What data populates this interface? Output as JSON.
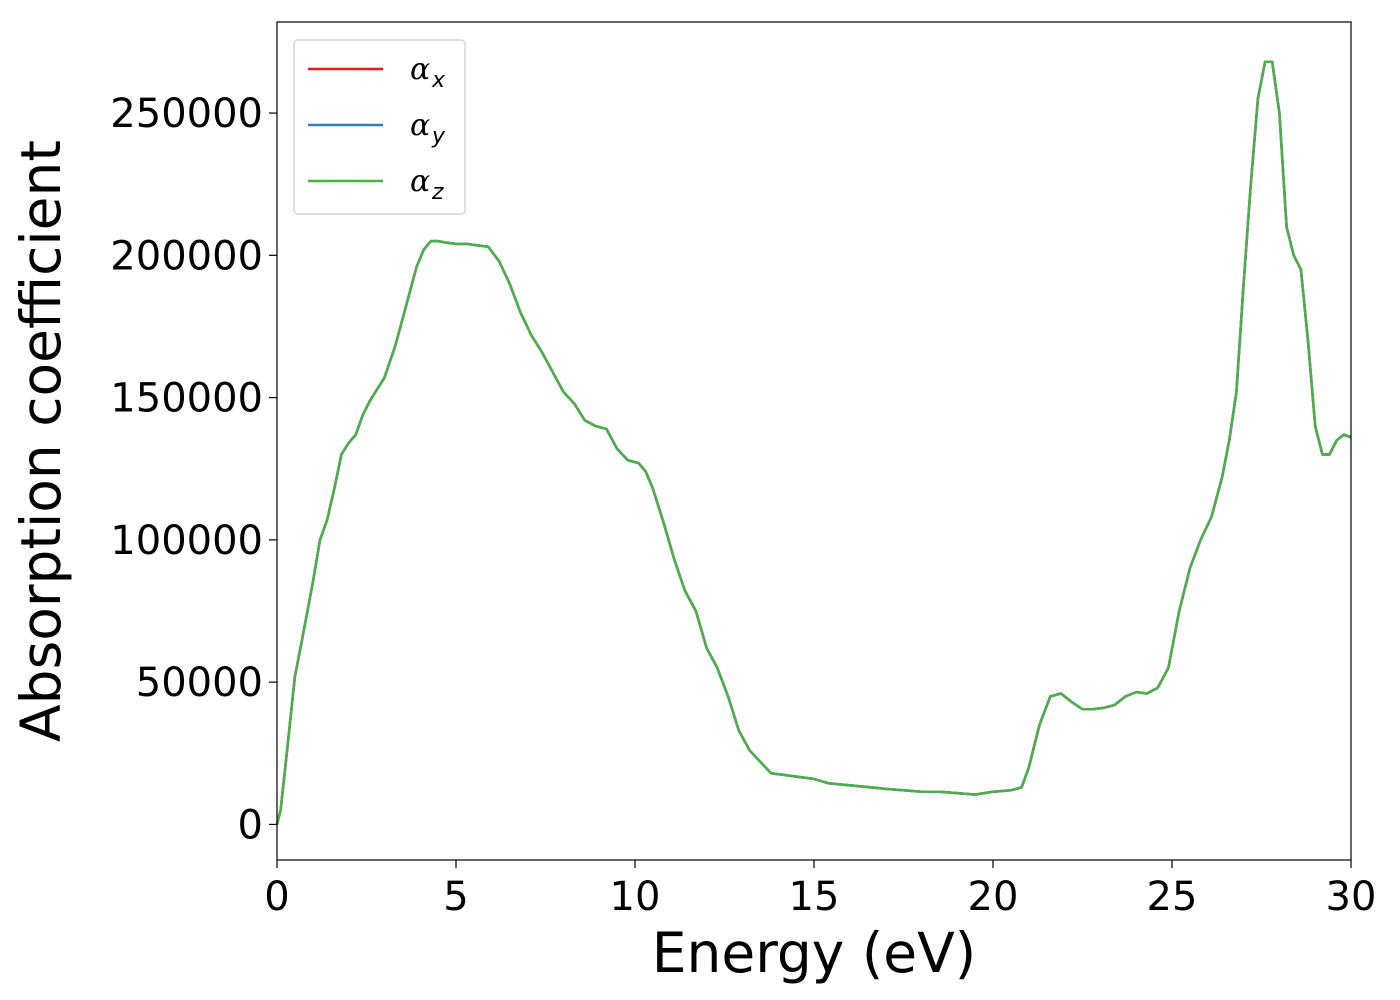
{
  "chart_data": {
    "type": "line",
    "title": "",
    "xlabel": "Energy (eV)",
    "ylabel": "Absorption coefficient",
    "xlim": [
      0,
      30
    ],
    "ylim": [
      -12500,
      282000
    ],
    "x_ticks": [
      "0",
      "5",
      "10",
      "15",
      "20",
      "25",
      "30"
    ],
    "y_ticks": [
      "0",
      "50000",
      "100000",
      "150000",
      "200000",
      "250000"
    ],
    "x_tick_values": [
      0,
      5,
      10,
      15,
      20,
      25,
      30
    ],
    "y_tick_values": [
      0,
      50000,
      100000,
      150000,
      200000,
      250000
    ],
    "grid": false,
    "legend_position": "top-left",
    "series": [
      {
        "name": "αx",
        "symbol": "α",
        "subscript": "x",
        "color": "#e41a1c"
      },
      {
        "name": "αy",
        "symbol": "α",
        "subscript": "y",
        "color": "#377eb8"
      },
      {
        "name": "αz",
        "symbol": "α",
        "subscript": "z",
        "color": "#4daf4a"
      }
    ],
    "x": [
      0,
      0.1,
      0.3,
      0.5,
      0.7,
      1.0,
      1.2,
      1.4,
      1.6,
      1.8,
      2.0,
      2.2,
      2.4,
      2.6,
      2.8,
      3.0,
      3.3,
      3.6,
      3.9,
      4.1,
      4.3,
      4.5,
      4.7,
      5.0,
      5.3,
      5.6,
      5.9,
      6.2,
      6.5,
      6.8,
      7.1,
      7.4,
      7.7,
      8.0,
      8.3,
      8.6,
      8.9,
      9.2,
      9.5,
      9.8,
      10.1,
      10.3,
      10.5,
      10.8,
      11.1,
      11.4,
      11.7,
      12.0,
      12.3,
      12.6,
      12.9,
      13.2,
      13.5,
      13.8,
      14.1,
      14.4,
      14.7,
      15.0,
      15.4,
      15.8,
      16.2,
      16.6,
      17.0,
      17.5,
      18.0,
      18.5,
      19.0,
      19.5,
      20.0,
      20.5,
      20.8,
      21.0,
      21.3,
      21.6,
      21.9,
      22.2,
      22.5,
      22.8,
      23.1,
      23.4,
      23.7,
      24.0,
      24.3,
      24.6,
      24.9,
      25.2,
      25.5,
      25.8,
      26.1,
      26.4,
      26.6,
      26.8,
      27.0,
      27.2,
      27.4,
      27.6,
      27.8,
      28.0,
      28.2,
      28.4,
      28.6,
      28.8,
      29.0,
      29.2,
      29.4,
      29.6,
      29.8,
      30.0
    ],
    "values": [
      0,
      5000,
      28000,
      52000,
      65000,
      85000,
      100000,
      107000,
      118000,
      130000,
      134000,
      137000,
      144000,
      149000,
      153000,
      157000,
      168000,
      182000,
      196000,
      202000,
      205000,
      205000,
      204500,
      204000,
      204000,
      203500,
      203000,
      198000,
      190000,
      180000,
      172000,
      166000,
      159000,
      152000,
      148000,
      142000,
      140000,
      139000,
      132000,
      128000,
      127000,
      124000,
      118000,
      106000,
      93000,
      82000,
      75000,
      62000,
      55000,
      45000,
      33000,
      26000,
      22000,
      18000,
      17500,
      17000,
      16500,
      16000,
      14500,
      14000,
      13500,
      13000,
      12500,
      12000,
      11500,
      11500,
      11000,
      10500,
      11500,
      12000,
      13000,
      20000,
      35000,
      45000,
      46000,
      43000,
      40500,
      40500,
      41000,
      42000,
      45000,
      46500,
      46000,
      48000,
      55000,
      75000,
      90000,
      100000,
      108000,
      122000,
      135000,
      152000,
      190000,
      225000,
      255000,
      268000,
      268000,
      250000,
      210000,
      200000,
      195000,
      170000,
      140000,
      130000,
      130000,
      135000,
      137000,
      136000
    ]
  }
}
